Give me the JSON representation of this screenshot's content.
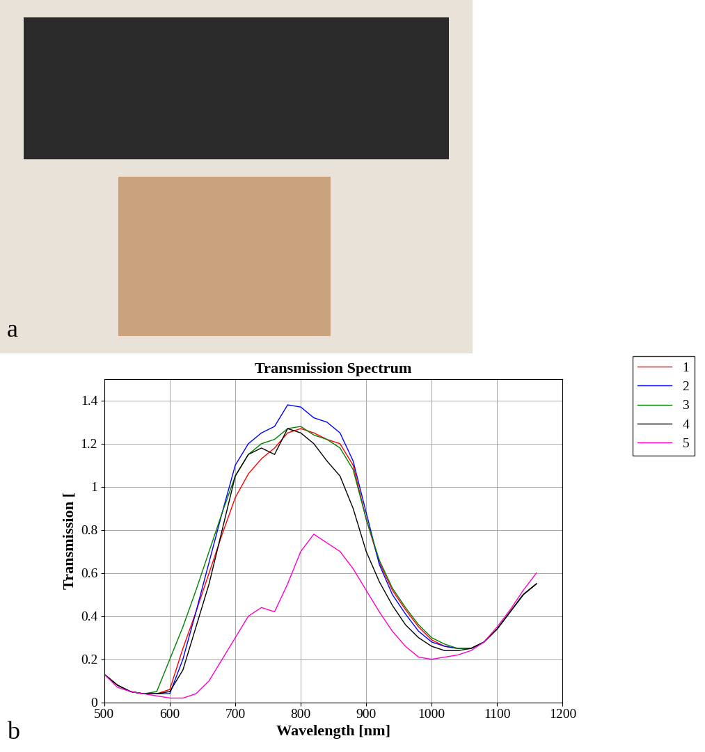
{
  "panels": [
    "a",
    "b"
  ],
  "chart_data": {
    "type": "line",
    "title": "Transmission Spectrum",
    "x_label": "Wavelength [nm]",
    "y_label": "Transmission [",
    "x": [
      500,
      520,
      540,
      560,
      580,
      600,
      620,
      640,
      660,
      680,
      700,
      720,
      740,
      760,
      780,
      800,
      820,
      840,
      860,
      880,
      900,
      920,
      940,
      960,
      980,
      1000,
      1020,
      1040,
      1060,
      1080,
      1100,
      1120,
      1140,
      1160
    ],
    "series": [
      {
        "name": "1",
        "color": "#ff0000",
        "values": [
          0.13,
          0.08,
          0.05,
          0.04,
          0.04,
          0.06,
          0.25,
          0.42,
          0.6,
          0.78,
          0.95,
          1.06,
          1.13,
          1.18,
          1.25,
          1.27,
          1.25,
          1.22,
          1.2,
          1.1,
          0.85,
          0.65,
          0.52,
          0.43,
          0.35,
          0.29,
          0.26,
          0.25,
          0.25,
          0.28,
          0.34,
          0.42,
          0.5,
          0.55
        ]
      },
      {
        "name": "2",
        "color": "#0000ff",
        "values": [
          0.13,
          0.08,
          0.05,
          0.04,
          0.04,
          0.04,
          0.2,
          0.42,
          0.65,
          0.88,
          1.1,
          1.2,
          1.25,
          1.28,
          1.38,
          1.37,
          1.32,
          1.3,
          1.25,
          1.12,
          0.88,
          0.64,
          0.5,
          0.41,
          0.33,
          0.28,
          0.26,
          0.25,
          0.25,
          0.28,
          0.34,
          0.42,
          0.5,
          0.55
        ]
      },
      {
        "name": "3",
        "color": "#008000",
        "values": [
          0.13,
          0.08,
          0.05,
          0.04,
          0.05,
          0.2,
          0.35,
          0.52,
          0.7,
          0.88,
          1.05,
          1.15,
          1.2,
          1.22,
          1.27,
          1.28,
          1.24,
          1.22,
          1.18,
          1.08,
          0.85,
          0.66,
          0.53,
          0.44,
          0.36,
          0.3,
          0.27,
          0.25,
          0.25,
          0.28,
          0.34,
          0.42,
          0.5,
          0.55
        ]
      },
      {
        "name": "4",
        "color": "#000000",
        "values": [
          0.13,
          0.08,
          0.05,
          0.04,
          0.04,
          0.05,
          0.15,
          0.35,
          0.55,
          0.8,
          1.05,
          1.15,
          1.18,
          1.15,
          1.27,
          1.25,
          1.2,
          1.12,
          1.05,
          0.9,
          0.7,
          0.56,
          0.45,
          0.36,
          0.3,
          0.26,
          0.24,
          0.24,
          0.25,
          0.28,
          0.34,
          0.42,
          0.5,
          0.55
        ]
      },
      {
        "name": "5",
        "color": "#ff00cc",
        "values": [
          0.13,
          0.07,
          0.05,
          0.04,
          0.03,
          0.02,
          0.02,
          0.04,
          0.1,
          0.2,
          0.3,
          0.4,
          0.44,
          0.42,
          0.55,
          0.7,
          0.78,
          0.74,
          0.7,
          0.62,
          0.52,
          0.42,
          0.33,
          0.26,
          0.21,
          0.2,
          0.21,
          0.22,
          0.24,
          0.28,
          0.35,
          0.43,
          0.52,
          0.6
        ]
      }
    ],
    "xlim": [
      500,
      1200
    ],
    "xticks": [
      500,
      600,
      700,
      800,
      900,
      1000,
      1100,
      1200
    ],
    "ylim": [
      0,
      1.5
    ],
    "yticks": [
      0,
      0.2,
      0.4,
      0.6,
      0.8,
      1,
      1.2,
      1.4
    ],
    "grid": true,
    "legend": "upper right"
  }
}
